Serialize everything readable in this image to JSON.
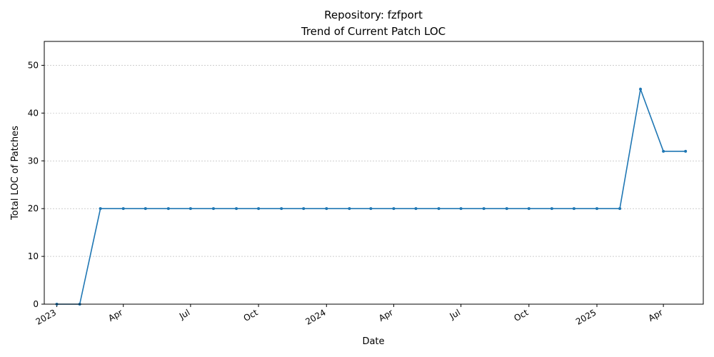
{
  "chart_data": {
    "type": "line",
    "title": "Repository: fzfport",
    "subtitle": "Trend of Current Patch LOC",
    "xlabel": "Date",
    "ylabel": "Total LOC of Patches",
    "ylim": [
      0,
      55
    ],
    "yticks": [
      0,
      10,
      20,
      30,
      40,
      50
    ],
    "xlim": [
      "2022-12-15",
      "2025-05-25"
    ],
    "xticks": [
      {
        "date": "2023-01-01",
        "label": "2023"
      },
      {
        "date": "2023-04-01",
        "label": "Apr"
      },
      {
        "date": "2023-07-01",
        "label": "Jul"
      },
      {
        "date": "2023-10-01",
        "label": "Oct"
      },
      {
        "date": "2024-01-01",
        "label": "2024"
      },
      {
        "date": "2024-04-01",
        "label": "Apr"
      },
      {
        "date": "2024-07-01",
        "label": "Jul"
      },
      {
        "date": "2024-10-01",
        "label": "Oct"
      },
      {
        "date": "2025-01-01",
        "label": "2025"
      },
      {
        "date": "2025-04-01",
        "label": "Apr"
      }
    ],
    "grid": "y",
    "color": "#1f77b4",
    "x": [
      "2023-01-01",
      "2023-02-01",
      "2023-03-01",
      "2023-04-01",
      "2023-05-01",
      "2023-06-01",
      "2023-07-01",
      "2023-08-01",
      "2023-09-01",
      "2023-10-01",
      "2023-11-01",
      "2023-12-01",
      "2024-01-01",
      "2024-02-01",
      "2024-03-01",
      "2024-04-01",
      "2024-05-01",
      "2024-06-01",
      "2024-07-01",
      "2024-08-01",
      "2024-09-01",
      "2024-10-01",
      "2024-11-01",
      "2024-12-01",
      "2025-01-01",
      "2025-02-01",
      "2025-03-01",
      "2025-04-01",
      "2025-05-01"
    ],
    "values": [
      0,
      0,
      20,
      20,
      20,
      20,
      20,
      20,
      20,
      20,
      20,
      20,
      20,
      20,
      20,
      20,
      20,
      20,
      20,
      20,
      20,
      20,
      20,
      20,
      20,
      20,
      45,
      32,
      32
    ]
  }
}
